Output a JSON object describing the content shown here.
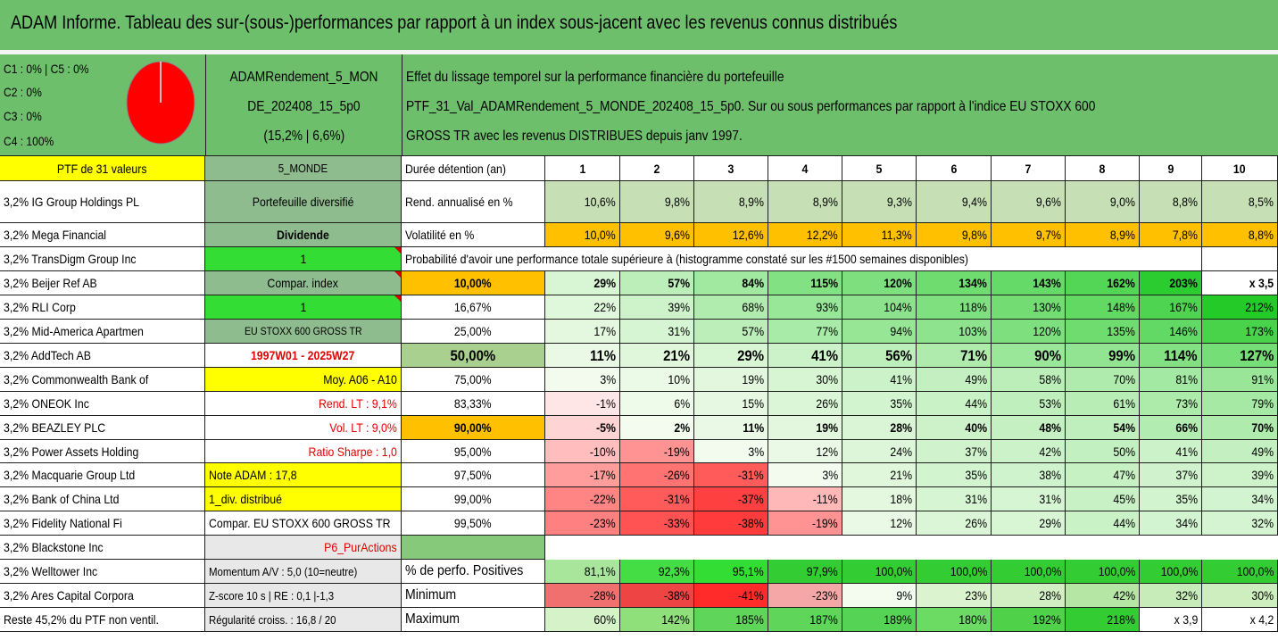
{
  "title": "ADAM Informe. Tableau des sur-(sous-)performances par rapport à un index sous-jacent avec les revenus connus distribués",
  "header": {
    "class_lines": [
      "C1 : 0% | C5 : 0%",
      "C2 : 0%",
      "C3 : 0%",
      "C4 : 100%"
    ],
    "portfolio_name_lines": [
      "ADAMRendement_5_MON",
      "DE_202408_15_5p0",
      "(15,2% | 6,6%)"
    ],
    "description_lines": [
      "Effet du lissage temporel sur la performance financière du portefeuille",
      "PTF_31_Val_ADAMRendement_5_MONDE_202408_15_5p0. Sur ou sous performances par rapport à l'indice EU STOXX 600",
      "GROSS TR avec les revenus DISTRIBUES depuis janv 1997."
    ]
  },
  "ptf_label": "PTF de 31 valeurs",
  "holdings": [
    "3,2% IG Group Holdings PL",
    "3,2% Mega Financial",
    "3,2% TransDigm Group Inc",
    "3,2% Beijer Ref AB",
    "3,2% RLI Corp",
    "3,2% Mid-America Apartmen",
    "3,2% AddTech AB",
    "3,2% Commonwealth Bank of",
    "3,2% ONEOK Inc",
    "3,2% BEAZLEY PLC",
    "3,2% Power Assets Holding",
    "3,2% Macquarie Group Ltd",
    "3,2% Bank of China Ltd",
    "3,2% Fidelity National Fi",
    "3,2% Blackstone Inc",
    "3,2% Welltower Inc",
    "3,2% Ares Capital Corpora",
    "Reste 45,2% du PTF non ventil."
  ],
  "info_col": [
    "5_MONDE",
    "Portefeuille diversifié",
    "Dividende",
    "1",
    "Compar. index",
    "1",
    "EU STOXX 600 GROSS TR",
    "1997W01 - 2025W27",
    "Moy. A06 - A10",
    "Rend. LT : 9,1%",
    "Vol. LT : 9,0%",
    "Ratio Sharpe : 1,0",
    "Note ADAM : 17,8",
    "1_div. distribué",
    "Compar. EU STOXX 600 GROSS TR",
    "P6_PurActions",
    "Momentum A/V : 5,0 (10=neutre)",
    "Z-score 10 s | RE : 0,1 |-1,3",
    "Régularité croiss. : 16,8 / 20"
  ],
  "years": {
    "label": "Durée détention (an)",
    "values": [
      "1",
      "2",
      "3",
      "4",
      "5",
      "6",
      "7",
      "8",
      "9",
      "10"
    ]
  },
  "rend": {
    "label": "Rend. annualisé en %",
    "values": [
      "10,6%",
      "9,8%",
      "8,9%",
      "8,9%",
      "9,3%",
      "9,4%",
      "9,6%",
      "9,0%",
      "8,8%",
      "8,5%"
    ]
  },
  "vol": {
    "label": "Volatilité en %",
    "values": [
      "10,0%",
      "9,6%",
      "12,6%",
      "12,2%",
      "11,3%",
      "9,8%",
      "9,7%",
      "8,9%",
      "7,8%",
      "8,8%"
    ]
  },
  "proba_title": "Probabilité d'avoir une performance totale supérieure à (histogramme constaté sur les #1500 semaines disponibles)",
  "proba": [
    {
      "p": "10,00%",
      "v": [
        "29%",
        "57%",
        "84%",
        "115%",
        "120%",
        "134%",
        "143%",
        "162%",
        "203%",
        "x 3,5"
      ]
    },
    {
      "p": "16,67%",
      "v": [
        "22%",
        "39%",
        "68%",
        "93%",
        "104%",
        "118%",
        "130%",
        "148%",
        "167%",
        "212%"
      ]
    },
    {
      "p": "25,00%",
      "v": [
        "17%",
        "31%",
        "57%",
        "77%",
        "94%",
        "103%",
        "120%",
        "135%",
        "146%",
        "173%"
      ]
    },
    {
      "p": "50,00%",
      "v": [
        "11%",
        "21%",
        "29%",
        "41%",
        "56%",
        "71%",
        "90%",
        "99%",
        "114%",
        "127%"
      ]
    },
    {
      "p": "75,00%",
      "v": [
        "3%",
        "10%",
        "19%",
        "30%",
        "41%",
        "49%",
        "58%",
        "70%",
        "81%",
        "91%"
      ]
    },
    {
      "p": "83,33%",
      "v": [
        "-1%",
        "6%",
        "15%",
        "26%",
        "35%",
        "44%",
        "53%",
        "61%",
        "73%",
        "79%"
      ]
    },
    {
      "p": "90,00%",
      "v": [
        "-5%",
        "2%",
        "11%",
        "19%",
        "28%",
        "40%",
        "48%",
        "54%",
        "66%",
        "70%"
      ]
    },
    {
      "p": "95,00%",
      "v": [
        "-10%",
        "-19%",
        "3%",
        "12%",
        "24%",
        "37%",
        "42%",
        "50%",
        "41%",
        "49%"
      ]
    },
    {
      "p": "97,50%",
      "v": [
        "-17%",
        "-26%",
        "-31%",
        "3%",
        "21%",
        "35%",
        "38%",
        "47%",
        "37%",
        "39%"
      ]
    },
    {
      "p": "99,00%",
      "v": [
        "-22%",
        "-31%",
        "-37%",
        "-11%",
        "18%",
        "31%",
        "31%",
        "45%",
        "35%",
        "34%"
      ]
    },
    {
      "p": "99,50%",
      "v": [
        "-23%",
        "-33%",
        "-38%",
        "-19%",
        "12%",
        "26%",
        "29%",
        "44%",
        "34%",
        "32%"
      ]
    }
  ],
  "stats": [
    {
      "label": "% de perfo. Positives",
      "v": [
        "81,1%",
        "92,3%",
        "95,1%",
        "97,9%",
        "100,0%",
        "100,0%",
        "100,0%",
        "100,0%",
        "100,0%",
        "100,0%"
      ]
    },
    {
      "label": "Minimum",
      "v": [
        "-28%",
        "-38%",
        "-41%",
        "-23%",
        "9%",
        "23%",
        "28%",
        "42%",
        "32%",
        "30%"
      ]
    },
    {
      "label": "Maximum",
      "v": [
        "60%",
        "142%",
        "185%",
        "187%",
        "189%",
        "180%",
        "192%",
        "218%",
        "x 3,9",
        "x 4,2"
      ]
    }
  ],
  "pie": {
    "slices": [
      {
        "label": "C4",
        "value": 100,
        "color": "#ff0000"
      }
    ]
  },
  "colors": {
    "header_green": "#6dbf6b",
    "yellow": "#ffff00",
    "orange": "#ffc000",
    "bright_green": "#33cc33",
    "red_text": "#e00000"
  }
}
